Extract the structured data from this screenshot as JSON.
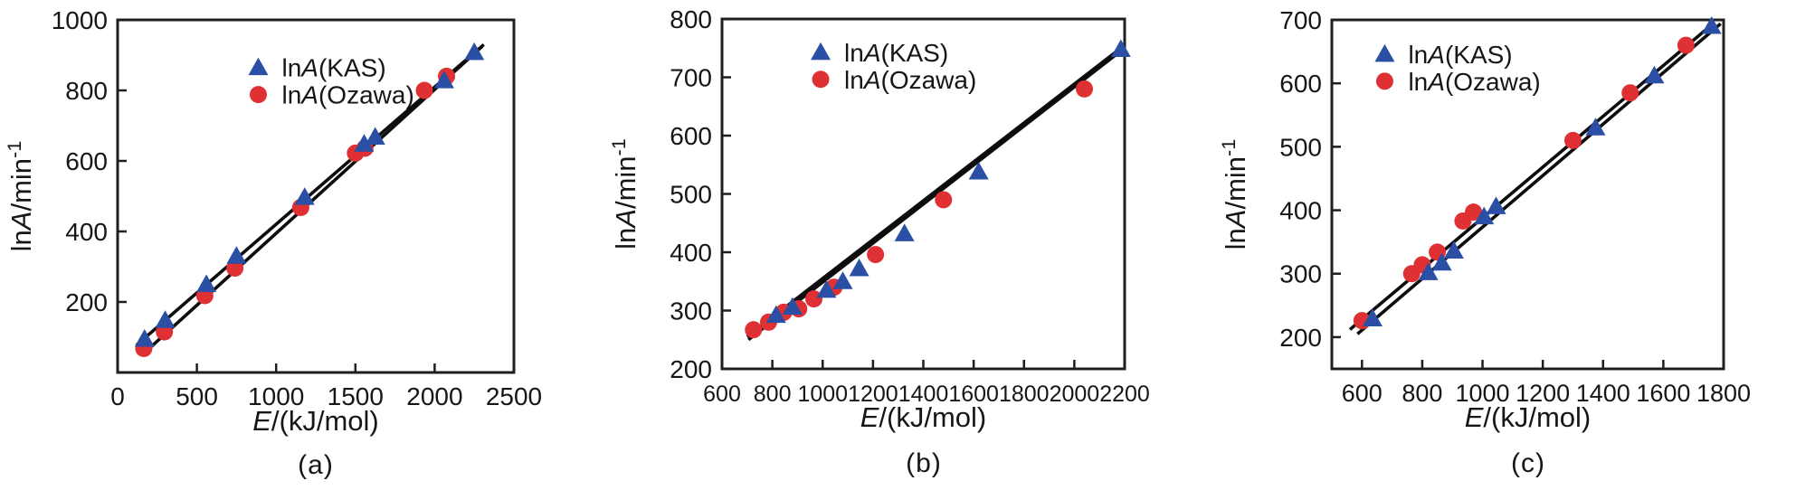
{
  "figure": {
    "background": "#ffffff",
    "text_color": "#161616",
    "frame_color": "#1f1f1f",
    "fit_line_color": "#0d0d0d",
    "kas_color": "#2a4fa5",
    "ozawa_color": "#df3134"
  },
  "chart_data": [
    {
      "id": "a",
      "type": "scatter",
      "caption": "(a)",
      "xlabel": "E/(kJ/mol)",
      "ylabel": "lnA/min-1",
      "xlabel_parts": [
        {
          "text": "E",
          "italic": true
        },
        {
          "text": "/(kJ/mol)"
        }
      ],
      "ylabel_parts": [
        {
          "text": "ln"
        },
        {
          "text": "A",
          "italic": true
        },
        {
          "text": "/min"
        },
        {
          "text": "-1",
          "sup": true
        }
      ],
      "xlim": [
        0,
        2500
      ],
      "ylim": [
        0,
        1000
      ],
      "xticks": [
        0,
        500,
        1000,
        1500,
        2000,
        2500
      ],
      "yticks": [
        200,
        400,
        600,
        800,
        1000
      ],
      "grid": false,
      "legend_position": "top-center-inside",
      "legend_anchor": [
        0.355,
        0.135
      ],
      "series": [
        {
          "name": "lnA(KAS)",
          "label_parts": [
            {
              "text": "ln"
            },
            {
              "text": "A",
              "italic": true
            },
            {
              "text": "(KAS)"
            }
          ],
          "marker": "triangle",
          "color": "#2a4fa5",
          "points": [
            [
              170,
              95
            ],
            [
              300,
              148
            ],
            [
              560,
              250
            ],
            [
              750,
              330
            ],
            [
              1180,
              497
            ],
            [
              1555,
              648
            ],
            [
              1625,
              668
            ],
            [
              2060,
              828
            ],
            [
              2250,
              908
            ]
          ]
        },
        {
          "name": "lnA(Ozawa)",
          "label_parts": [
            {
              "text": "ln"
            },
            {
              "text": "A",
              "italic": true
            },
            {
              "text": "(Ozawa)"
            }
          ],
          "marker": "circle",
          "color": "#df3134",
          "points": [
            [
              165,
              68
            ],
            [
              295,
              115
            ],
            [
              550,
              218
            ],
            [
              740,
              296
            ],
            [
              1155,
              468
            ],
            [
              1500,
              622
            ],
            [
              1560,
              636
            ],
            [
              1935,
              800
            ],
            [
              2075,
              840
            ]
          ]
        }
      ],
      "fit_lines": [
        {
          "series": "lnA(KAS)",
          "x1": 120,
          "y1": 78,
          "x2": 2310,
          "y2": 930
        },
        {
          "series": "lnA(Ozawa)",
          "x1": 150,
          "y1": 48,
          "x2": 2300,
          "y2": 925
        }
      ]
    },
    {
      "id": "b",
      "type": "scatter",
      "caption": "(b)",
      "xlabel": "E/(kJ/mol)",
      "ylabel": "lnA/min-1",
      "xlabel_parts": [
        {
          "text": "E",
          "italic": true
        },
        {
          "text": "/(kJ/mol)"
        }
      ],
      "ylabel_parts": [
        {
          "text": "ln"
        },
        {
          "text": "A",
          "italic": true
        },
        {
          "text": "/min"
        },
        {
          "text": "-1",
          "sup": true
        }
      ],
      "xlim": [
        600,
        2200
      ],
      "ylim": [
        200,
        800
      ],
      "xticks": [
        600,
        800,
        1000,
        1200,
        1400,
        1600,
        1800,
        2000,
        2200
      ],
      "yticks": [
        200,
        300,
        400,
        500,
        600,
        700,
        800
      ],
      "grid": false,
      "legend_position": "top-center-inside",
      "legend_anchor": [
        0.245,
        0.095
      ],
      "series": [
        {
          "name": "lnA(KAS)",
          "label_parts": [
            {
              "text": "ln"
            },
            {
              "text": "A",
              "italic": true
            },
            {
              "text": "(KAS)"
            }
          ],
          "marker": "triangle",
          "color": "#2a4fa5",
          "points": [
            [
              815,
              292
            ],
            [
              880,
              306
            ],
            [
              1015,
              335
            ],
            [
              1080,
              350
            ],
            [
              1145,
              372
            ],
            [
              1325,
              432
            ],
            [
              1620,
              538
            ],
            [
              2185,
              748
            ]
          ]
        },
        {
          "name": "lnA(Ozawa)",
          "label_parts": [
            {
              "text": "ln"
            },
            {
              "text": "A",
              "italic": true
            },
            {
              "text": "(Ozawa)"
            }
          ],
          "marker": "circle",
          "color": "#df3134",
          "points": [
            [
              725,
              267
            ],
            [
              785,
              280
            ],
            [
              845,
              297
            ],
            [
              905,
              303
            ],
            [
              965,
              320
            ],
            [
              1045,
              340
            ],
            [
              1210,
              396
            ],
            [
              1480,
              490
            ],
            [
              2040,
              680
            ]
          ]
        }
      ],
      "fit_lines": [
        {
          "series": "lnA(KAS)",
          "x1": 700,
          "y1": 255,
          "x2": 2170,
          "y2": 745
        },
        {
          "series": "lnA(Ozawa)",
          "x1": 705,
          "y1": 250,
          "x2": 2175,
          "y2": 742
        }
      ]
    },
    {
      "id": "c",
      "type": "scatter",
      "caption": "(c)",
      "xlabel": "E/(kJ/mol)",
      "ylabel": "lnA/min-1",
      "xlabel_parts": [
        {
          "text": "E",
          "italic": true
        },
        {
          "text": "/(kJ/mol)"
        }
      ],
      "ylabel_parts": [
        {
          "text": "ln"
        },
        {
          "text": "A",
          "italic": true
        },
        {
          "text": "/min"
        },
        {
          "text": "-1",
          "sup": true
        }
      ],
      "xlim": [
        500,
        1800
      ],
      "ylim": [
        150,
        700
      ],
      "xticks": [
        600,
        800,
        1000,
        1200,
        1400,
        1600,
        1800
      ],
      "yticks": [
        200,
        300,
        400,
        500,
        600,
        700
      ],
      "grid": false,
      "legend_position": "top-center-inside",
      "legend_anchor": [
        0.135,
        0.098
      ],
      "series": [
        {
          "name": "lnA(KAS)",
          "label_parts": [
            {
              "text": "ln"
            },
            {
              "text": "A",
              "italic": true
            },
            {
              "text": "(KAS)"
            }
          ],
          "marker": "triangle",
          "color": "#2a4fa5",
          "points": [
            [
              635,
              229
            ],
            [
              820,
              302
            ],
            [
              865,
              317
            ],
            [
              905,
              336
            ],
            [
              1005,
              390
            ],
            [
              1045,
              406
            ],
            [
              1375,
              530
            ],
            [
              1570,
              612
            ],
            [
              1760,
              690
            ]
          ]
        },
        {
          "name": "lnA(Ozawa)",
          "label_parts": [
            {
              "text": "ln"
            },
            {
              "text": "A",
              "italic": true
            },
            {
              "text": "(Ozawa)"
            }
          ],
          "marker": "circle",
          "color": "#df3134",
          "points": [
            [
              600,
              226
            ],
            [
              765,
              300
            ],
            [
              800,
              314
            ],
            [
              850,
              334
            ],
            [
              935,
              383
            ],
            [
              970,
              397
            ],
            [
              1300,
              510
            ],
            [
              1490,
              585
            ],
            [
              1675,
              660
            ]
          ]
        }
      ],
      "fit_lines": [
        {
          "series": "lnA(KAS)",
          "x1": 585,
          "y1": 205,
          "x2": 1790,
          "y2": 694
        },
        {
          "series": "lnA(Ozawa)",
          "x1": 560,
          "y1": 212,
          "x2": 1770,
          "y2": 696
        }
      ]
    }
  ]
}
